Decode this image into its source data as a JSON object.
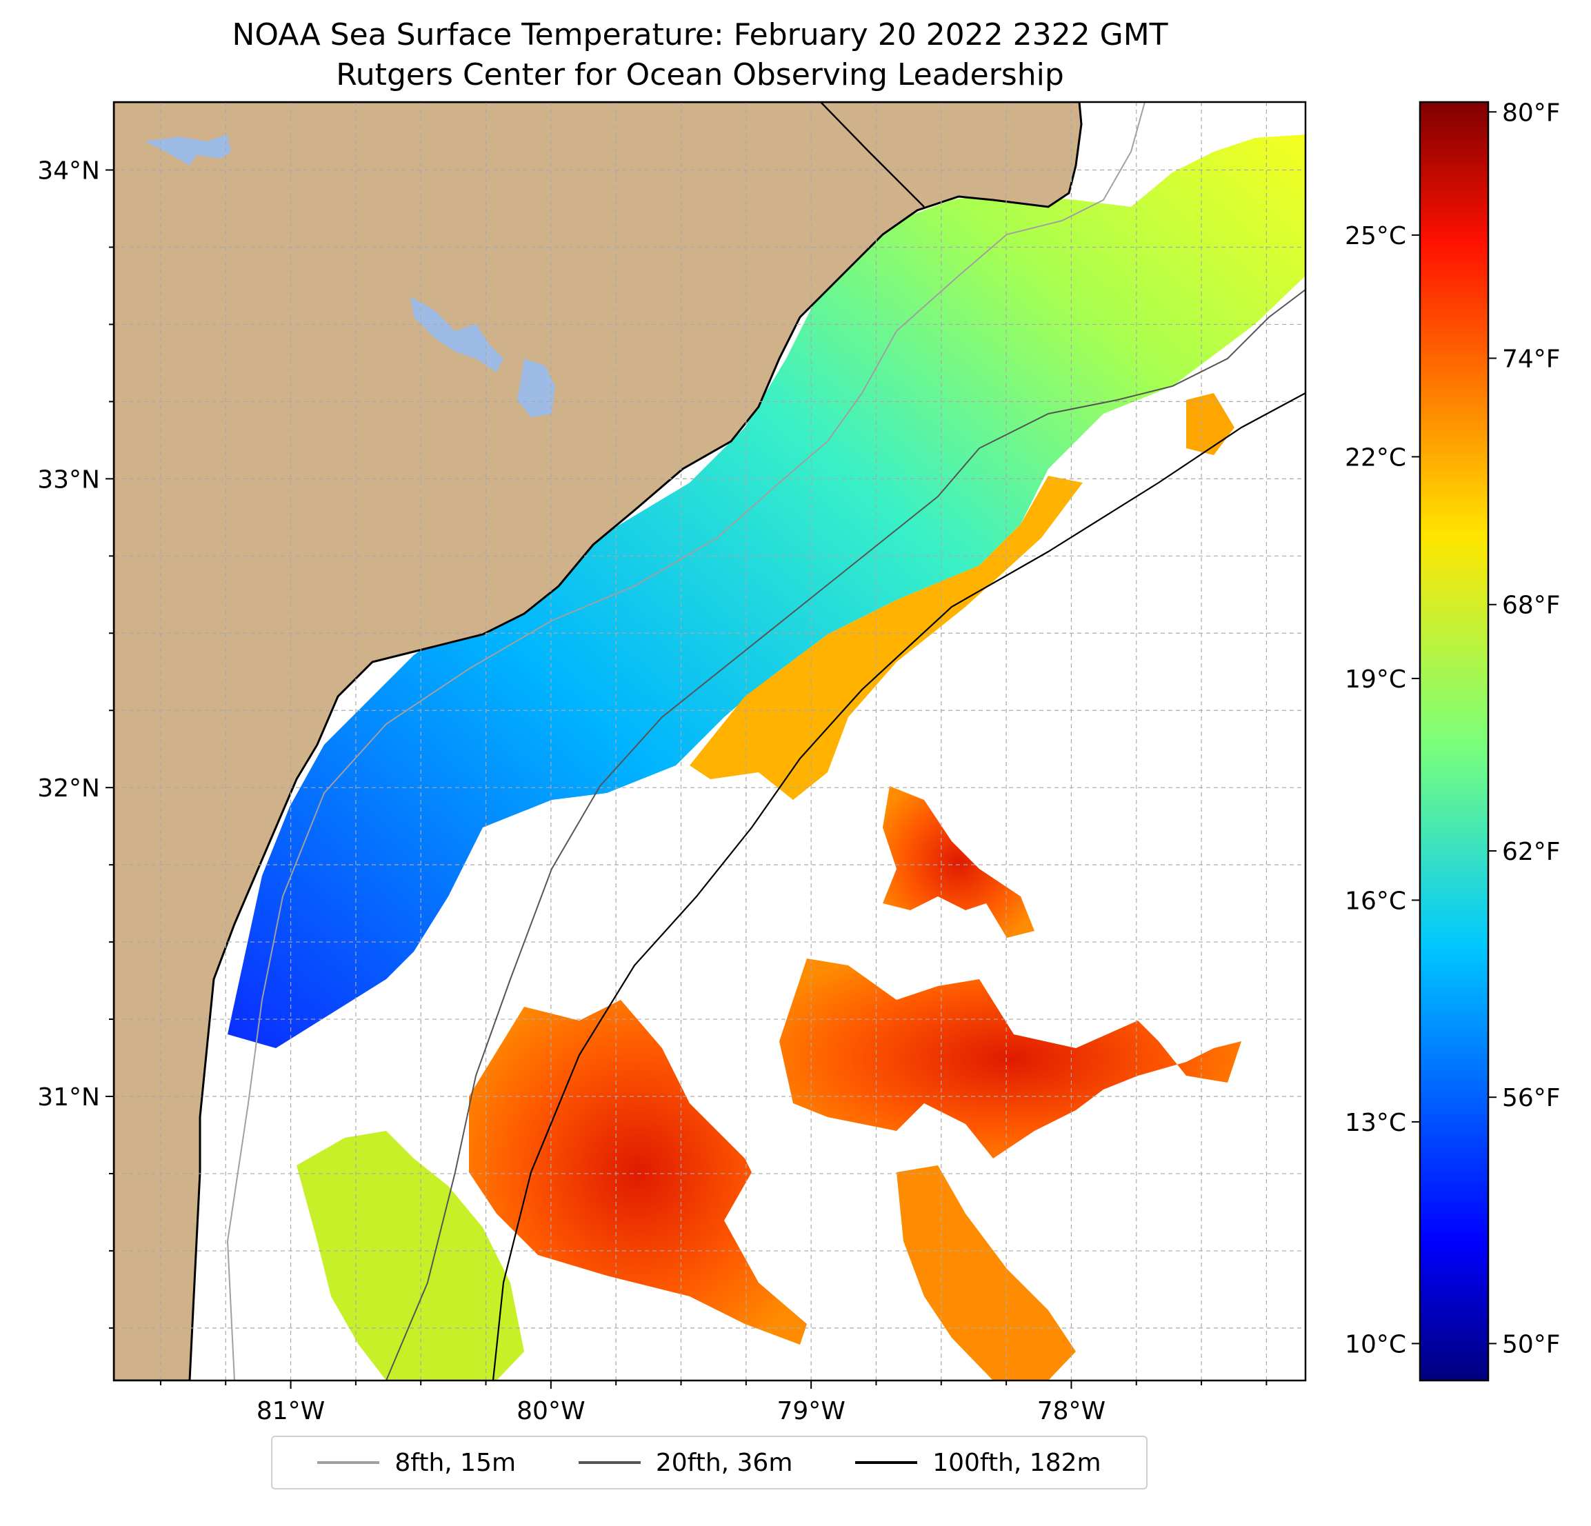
{
  "title": {
    "line1": "NOAA Sea Surface Temperature: February 20 2022 2322 GMT",
    "line2": "Rutgers Center for Ocean Observing Leadership"
  },
  "map": {
    "lon_range": [
      -81.68,
      -77.1
    ],
    "lat_range": [
      30.08,
      34.22
    ],
    "lon_ticks": [
      {
        "value": -81,
        "label": "81°W"
      },
      {
        "value": -80,
        "label": "80°W"
      },
      {
        "value": -79,
        "label": "79°W"
      },
      {
        "value": -78,
        "label": "78°W"
      }
    ],
    "lat_ticks": [
      {
        "value": 31,
        "label": "31°N"
      },
      {
        "value": 32,
        "label": "32°N"
      },
      {
        "value": 33,
        "label": "33°N"
      },
      {
        "value": 34,
        "label": "34°N"
      }
    ],
    "gridlines": "dashed, every 0.25°",
    "colors": {
      "land": "#cfb18a",
      "lakes": "#9dbbe4",
      "frame": "#000000",
      "grid": "#aaaaaa"
    },
    "colormap": "jet"
  },
  "colorbar": {
    "range_c": [
      9.5,
      26.8
    ],
    "celsius_ticks": [
      {
        "value": 10,
        "label": "10°C"
      },
      {
        "value": 13,
        "label": "13°C"
      },
      {
        "value": 16,
        "label": "16°C"
      },
      {
        "value": 19,
        "label": "19°C"
      },
      {
        "value": 22,
        "label": "22°C"
      },
      {
        "value": 25,
        "label": "25°C"
      }
    ],
    "fahrenheit_ticks": [
      {
        "value": 50,
        "label": "50°F"
      },
      {
        "value": 56,
        "label": "56°F"
      },
      {
        "value": 62,
        "label": "62°F"
      },
      {
        "value": 68,
        "label": "68°F"
      },
      {
        "value": 74,
        "label": "74°F"
      },
      {
        "value": 80,
        "label": "80°F"
      }
    ]
  },
  "legend": {
    "items": [
      {
        "label": "8fth, 15m",
        "color": "#a0a0a0"
      },
      {
        "label": "20fth, 36m",
        "color": "#555555"
      },
      {
        "label": "100fth, 182m",
        "color": "#000000"
      }
    ],
    "placement": "bottom-center"
  }
}
